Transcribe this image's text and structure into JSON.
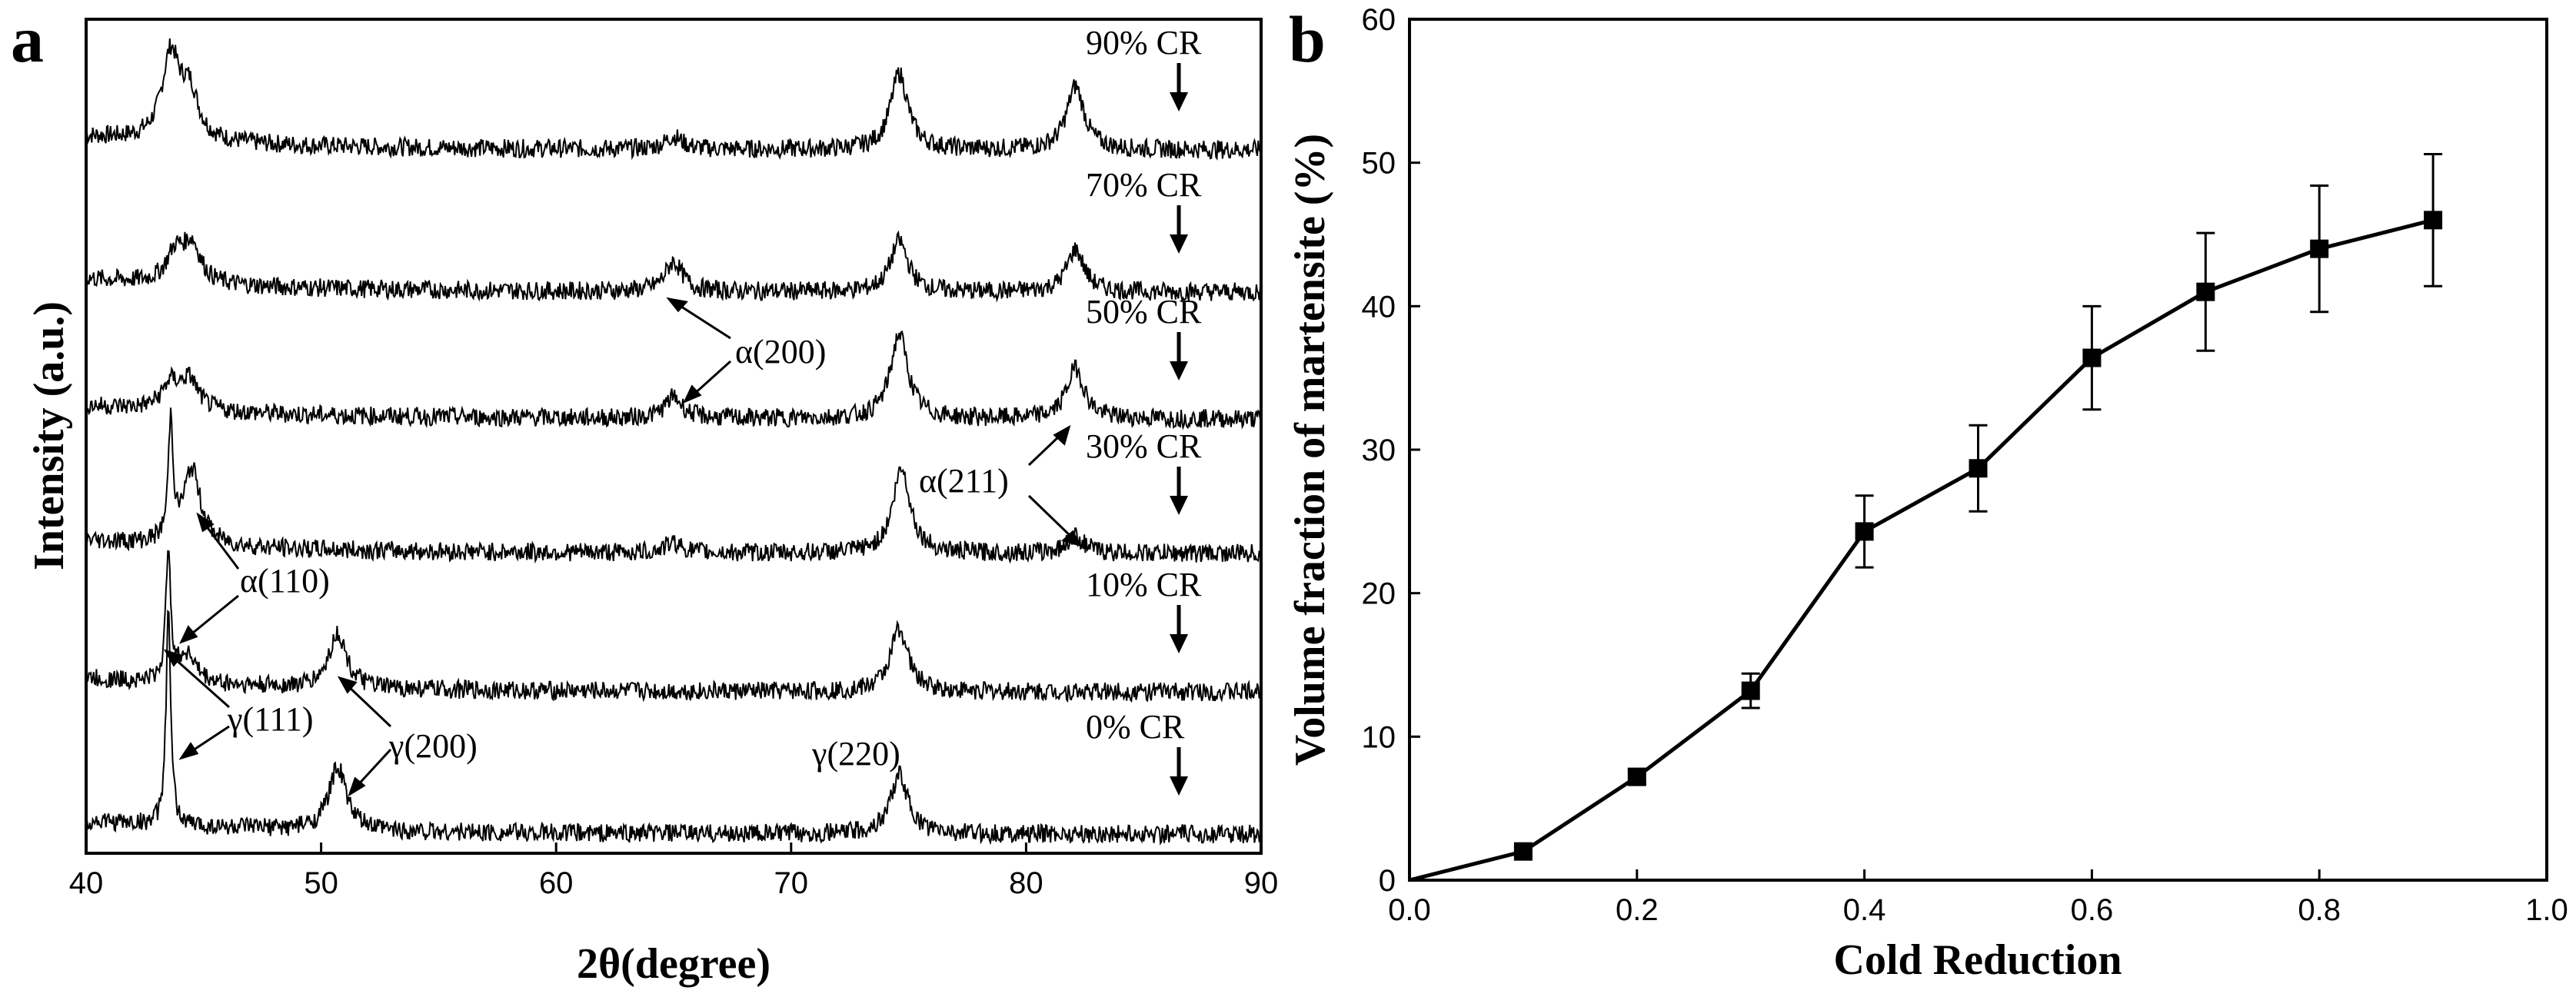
{
  "chart_data": [
    {
      "panel": "a",
      "type": "line",
      "title": "",
      "xlabel": "2θ(degree)",
      "ylabel": "Intensity (a.u.)",
      "xlim": [
        40,
        90
      ],
      "xticks": [
        40,
        50,
        60,
        70,
        80,
        90
      ],
      "series": [
        {
          "name": "90% CR",
          "peaks": [
            {
              "x": 43.6,
              "h": 1.0
            },
            {
              "x": 44.4,
              "h": 0.55
            },
            {
              "x": 65.0,
              "h": 0.15
            },
            {
              "x": 74.6,
              "h": 0.9
            },
            {
              "x": 82.1,
              "h": 0.75
            }
          ]
        },
        {
          "name": "70% CR",
          "peaks": [
            {
              "x": 43.8,
              "h": 0.35
            },
            {
              "x": 44.5,
              "h": 0.45
            },
            {
              "x": 65.0,
              "h": 0.35
            },
            {
              "x": 74.6,
              "h": 0.6
            },
            {
              "x": 82.1,
              "h": 0.5
            }
          ]
        },
        {
          "name": "50% CR",
          "peaks": [
            {
              "x": 43.6,
              "h": 0.3
            },
            {
              "x": 44.4,
              "h": 0.35
            },
            {
              "x": 65.0,
              "h": 0.25
            },
            {
              "x": 74.6,
              "h": 1.0
            },
            {
              "x": 82.1,
              "h": 0.6
            }
          ]
        },
        {
          "name": "30% CR",
          "peaks": [
            {
              "x": 43.6,
              "h": 1.4
            },
            {
              "x": 44.5,
              "h": 0.9
            },
            {
              "x": 65.0,
              "h": 0.12
            },
            {
              "x": 74.7,
              "h": 1.0
            },
            {
              "x": 82.1,
              "h": 0.2
            }
          ]
        },
        {
          "name": "10% CR",
          "peaks": [
            {
              "x": 43.5,
              "h": 1.6
            },
            {
              "x": 44.3,
              "h": 0.35
            },
            {
              "x": 50.7,
              "h": 0.65
            },
            {
              "x": 74.6,
              "h": 0.75
            }
          ]
        },
        {
          "name": "0% CR",
          "peaks": [
            {
              "x": 43.5,
              "h": 2.5
            },
            {
              "x": 50.7,
              "h": 0.75
            },
            {
              "x": 74.6,
              "h": 0.7
            }
          ]
        }
      ],
      "annotations": [
        "α(200)",
        "α(211)",
        "α(110)",
        "γ(111)",
        "γ(200)",
        "γ(220)"
      ]
    },
    {
      "panel": "b",
      "type": "line",
      "title": "",
      "xlabel": "Cold Reduction",
      "ylabel": "Volume fraction of martensite (%)",
      "xlim": [
        0.0,
        1.0
      ],
      "ylim": [
        0,
        60
      ],
      "xticks": [
        "0.0",
        "0.2",
        "0.4",
        "0.6",
        "0.8",
        "1.0"
      ],
      "yticks": [
        "0",
        "10",
        "20",
        "30",
        "40",
        "50",
        "60"
      ],
      "x": [
        0.0,
        0.1,
        0.2,
        0.3,
        0.4,
        0.5,
        0.6,
        0.7,
        0.8,
        0.9
      ],
      "y": [
        0,
        2,
        7.2,
        13.2,
        24.3,
        28.7,
        36.4,
        41.0,
        44.0,
        46.0
      ],
      "yerr": [
        0,
        0.3,
        0.5,
        1.2,
        2.5,
        3.0,
        3.6,
        4.1,
        4.4,
        4.6
      ]
    }
  ],
  "figure": {
    "panel_a_letter": "a",
    "panel_b_letter": "b"
  }
}
